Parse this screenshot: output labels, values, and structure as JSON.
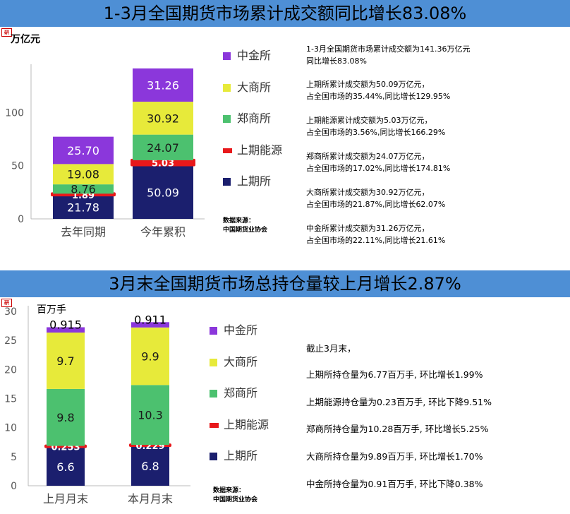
{
  "colors": {
    "banner": "#4e8fd5",
    "shfe": "#1b1f6e",
    "ine": "#e8181b",
    "czce": "#4cc16f",
    "dce": "#e7ea3a",
    "cffex": "#8b37db"
  },
  "top": {
    "title": "1-3月全国期货市场累计成交额同比增长83.08%",
    "unit": "万亿元",
    "legend": [
      "中金所",
      "大商所",
      "郑商所",
      "上期能源",
      "上期所"
    ],
    "source_lines": [
      "数据来源：",
      "中国期货业协会"
    ],
    "notes": [
      [
        "1-3月全国期货市场累计成交额为141.36万亿元",
        "同比增长83.08%"
      ],
      [
        "上期所累计成交额为50.09万亿元，",
        "占全国市场的35.44%,同比增长129.95%"
      ],
      [
        "上期能源累计成交额为5.03万亿元，",
        "占全国市场的3.56%,同比增长166.29%"
      ],
      [
        "郑商所累计成交额为24.07万亿元，",
        "占全国市场的17.02%,同比增长174.81%"
      ],
      [
        "大商所累计成交额为30.92万亿元，",
        "占全国市场的21.87%,同比增长62.07%"
      ],
      [
        "中金所累计成交额为31.26万亿元，",
        "占全国市场的22.11%,同比增长21.61%"
      ]
    ]
  },
  "bottom": {
    "title": "3月末全国期货市场总持仓量较上月增长2.87%",
    "unit": "百万手",
    "legend": [
      "中金所",
      "大商所",
      "郑商所",
      "上期能源",
      "上期所"
    ],
    "source_lines": [
      "数据来源：",
      "中国期货业协会"
    ],
    "notes": [
      "截止3月末，",
      "上期所持仓量为6.77百万手, 环比增长1.99%",
      "上期能源持仓量为0.23百万手, 环比下降9.51%",
      "郑商所持仓量为10.28百万手, 环比增长5.25%",
      "大商所持仓量为9.89百万手, 环比增长1.70%",
      "中金所持仓量为0.91百万手, 环比下降0.38%"
    ]
  },
  "chart_data": [
    {
      "type": "bar",
      "stacked": true,
      "title": "1-3月全国期货市场累计成交额同比增长83.08%",
      "ylabel": "万亿元",
      "categories": [
        "去年同期",
        "今年累积"
      ],
      "ylim": [
        0,
        140
      ],
      "yticks": [
        0,
        50,
        100
      ],
      "series": [
        {
          "name": "上期所",
          "values": [
            21.78,
            50.09
          ],
          "labels": [
            "21.78",
            "50.09"
          ]
        },
        {
          "name": "上期能源",
          "values": [
            1.89,
            5.03
          ],
          "labels": [
            "1.89",
            "5.03"
          ]
        },
        {
          "name": "郑商所",
          "values": [
            8.76,
            24.07
          ],
          "labels": [
            "8.76",
            "24.07"
          ]
        },
        {
          "name": "大商所",
          "values": [
            19.08,
            30.92
          ],
          "labels": [
            "19.08",
            "30.92"
          ]
        },
        {
          "name": "中金所",
          "values": [
            25.7,
            31.26
          ],
          "labels": [
            "25.70",
            "31.26"
          ]
        }
      ]
    },
    {
      "type": "bar",
      "stacked": true,
      "title": "3月末全国期货市场总持仓量较上月增长2.87%",
      "ylabel": "百万手",
      "categories": [
        "上月月末",
        "本月月末"
      ],
      "ylim": [
        0,
        30
      ],
      "yticks": [
        0,
        5,
        10,
        15,
        20,
        25,
        30
      ],
      "series": [
        {
          "name": "上期所",
          "values": [
            6.6,
            6.8
          ],
          "labels": [
            "6.6",
            "6.8"
          ]
        },
        {
          "name": "上期能源",
          "values": [
            0.253,
            0.229
          ],
          "labels": [
            "0.253",
            "0.229"
          ]
        },
        {
          "name": "郑商所",
          "values": [
            9.8,
            10.3
          ],
          "labels": [
            "9.8",
            "10.3"
          ]
        },
        {
          "name": "大商所",
          "values": [
            9.7,
            9.9
          ],
          "labels": [
            "9.7",
            "9.9"
          ]
        },
        {
          "name": "中金所",
          "values": [
            0.915,
            0.911
          ],
          "labels": [
            "0.915",
            "0.911"
          ]
        }
      ]
    }
  ]
}
